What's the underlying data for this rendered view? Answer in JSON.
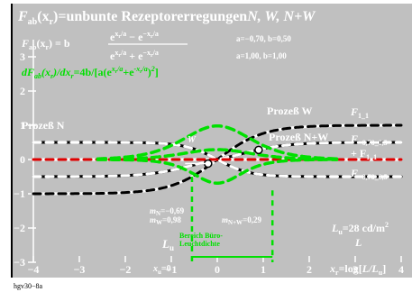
{
  "title": {
    "main": "F",
    "main_sub": "ab",
    "main_args": "(x",
    "main_args_sub": "r",
    "main_tail": ")=unbunte Rezeptorerregungen",
    "series_names": "N, W, N+W"
  },
  "formula": {
    "lhs": "F",
    "lhs_sub": "ab",
    "lhs_args": "(x",
    "lhs_args_sub": "r",
    "lhs_tail": ") = b",
    "numerator": "e",
    "numerator_exp": "x",
    "numerator_exp_sub": "r",
    "numerator_exp_tail": "/a",
    "numerator_minus": " − e",
    "numerator_exp2": "−x",
    "numerator_exp2_sub": "r",
    "numerator_exp2_tail": "/a",
    "denominator": "e",
    "denominator_exp": "x",
    "denominator_exp_sub": "r",
    "denominator_exp_tail": "/a",
    "denominator_plus": " + e",
    "denominator_exp2": "−x",
    "denominator_exp2_sub": "r",
    "denominator_exp2_tail": "/a"
  },
  "derivative_text": "dF",
  "derivative_sub": "ab",
  "derivative_tail": "(x",
  "derivative_tail_sub": "r",
  "derivative_rest": ")/dx",
  "derivative_rest_sub": "r",
  "derivative_rhs": "=4b/[a(e",
  "derivative_rhs_exp": "x",
  "derivative_rhs_exp_sub": "r",
  "derivative_rhs_exp_tail": "/a",
  "derivative_rhs_mid": "+e",
  "derivative_rhs_exp2": "-x",
  "derivative_rhs_exp2_sub": "r",
  "derivative_rhs_exp2_tail": "/a",
  "derivative_rhs_end": ")",
  "derivative_rhs_pow": "2",
  "derivative_rhs_close": "]",
  "params": {
    "line1": "a=−0,70, b=0,50",
    "line2": "a=1,00, b=1,00"
  },
  "labels": {
    "prozess_n": "Prozeß N",
    "prozess_w": "Prozeß W",
    "prozess_nw": "Prozeß N+W",
    "w_marker": "W",
    "f11": "F",
    "f11_sub": "1_1",
    "f07_top": "F",
    "f07_top_sub": "−0,70_0,5",
    "f07_plus": "+ F",
    "f07_plus_sub": "1_1",
    "f07_bottom": "F",
    "f07_bottom_sub": "−0,70_0,5"
  },
  "annotations": {
    "m_n": "m",
    "m_n_sub": "N",
    "m_n_val": "=−0,69",
    "m_w": "m",
    "m_w_sub": "W",
    "m_w_val": "=0,98",
    "m_nw": "m",
    "m_nw_sub": "N+W",
    "m_nw_val": "=0,29",
    "lu": "L",
    "lu_sub": "u",
    "bereich1": "Bereich Büro-",
    "bereich2": "Leuchtdichte",
    "lum": "L",
    "lum_sub": "u",
    "lum_val": "=28 cd/m",
    "lum_exp": "2",
    "lum_l": "L",
    "xu": "x",
    "xu_sub": "u",
    "xu_val": "=0"
  },
  "axes": {
    "x_ticks": [
      "−4",
      "−3",
      "−2",
      "−1",
      "0",
      "1",
      "2",
      "3",
      "4"
    ],
    "y_ticks": [
      "3",
      "2",
      "1",
      "0",
      "−1",
      "−2",
      "−3"
    ],
    "x_label": "x",
    "x_label_sub": "r",
    "x_label_tail": "=log[",
    "x_label_italic": "L/L",
    "x_label_italic_sub": "u",
    "x_label_end": "]",
    "xlim": [
      -4,
      4
    ],
    "ylim": [
      -3,
      3.5
    ]
  },
  "footer": "hgv30−8a",
  "chart_data": {
    "type": "line",
    "series": [
      {
        "name": "F_1_1",
        "x": [
          -4,
          -3,
          -2,
          -1,
          0,
          1,
          2,
          3,
          4
        ],
        "y": [
          -0.999,
          -0.995,
          -0.964,
          -0.762,
          0,
          0.762,
          0.964,
          0.995,
          0.999
        ]
      },
      {
        "name": "F_−0,70_0,5",
        "x": [
          -4,
          -3,
          -2,
          -1,
          0,
          1,
          2,
          3,
          4
        ],
        "y": [
          0.5,
          0.497,
          0.472,
          0.327,
          0,
          -0.327,
          -0.472,
          -0.497,
          -0.5
        ]
      },
      {
        "name": "F_−0,70_0,5 + F_1_1",
        "x": [
          -4,
          -3,
          -2,
          -1,
          0,
          1,
          2,
          3,
          4
        ],
        "y": [
          -0.499,
          -0.498,
          -0.492,
          -0.435,
          0,
          0.435,
          0.492,
          0.498,
          0.499
        ]
      }
    ],
    "colors": {
      "background": "#c0c0c0",
      "white": "#ffffff",
      "black": "#000000",
      "green": "#00e000",
      "red": "#e00000"
    }
  }
}
